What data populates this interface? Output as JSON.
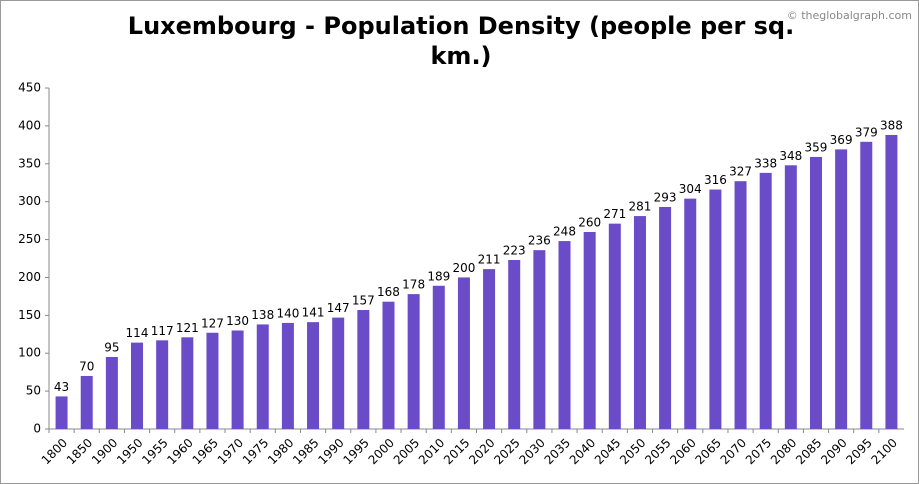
{
  "chart_data": {
    "type": "bar",
    "title": "Luxembourg - Population Density (people per sq. km.)",
    "watermark": "© theglobalgraph.com",
    "categories": [
      "1800",
      "1850",
      "1900",
      "1950",
      "1955",
      "1960",
      "1965",
      "1970",
      "1975",
      "1980",
      "1985",
      "1990",
      "1995",
      "2000",
      "2005",
      "2010",
      "2015",
      "2020",
      "2025",
      "2030",
      "2035",
      "2040",
      "2045",
      "2050",
      "2055",
      "2060",
      "2065",
      "2070",
      "2075",
      "2080",
      "2085",
      "2090",
      "2095",
      "2100"
    ],
    "values": [
      43,
      70,
      95,
      114,
      117,
      121,
      127,
      130,
      138,
      140,
      141,
      147,
      157,
      168,
      178,
      189,
      200,
      211,
      223,
      236,
      248,
      260,
      271,
      281,
      293,
      304,
      316,
      327,
      338,
      348,
      359,
      369,
      379,
      388
    ],
    "color": "#6a4bc8",
    "ylim": [
      0,
      450
    ],
    "yticks": [
      0,
      50,
      100,
      150,
      200,
      250,
      300,
      350,
      400,
      450
    ],
    "grid": false
  }
}
